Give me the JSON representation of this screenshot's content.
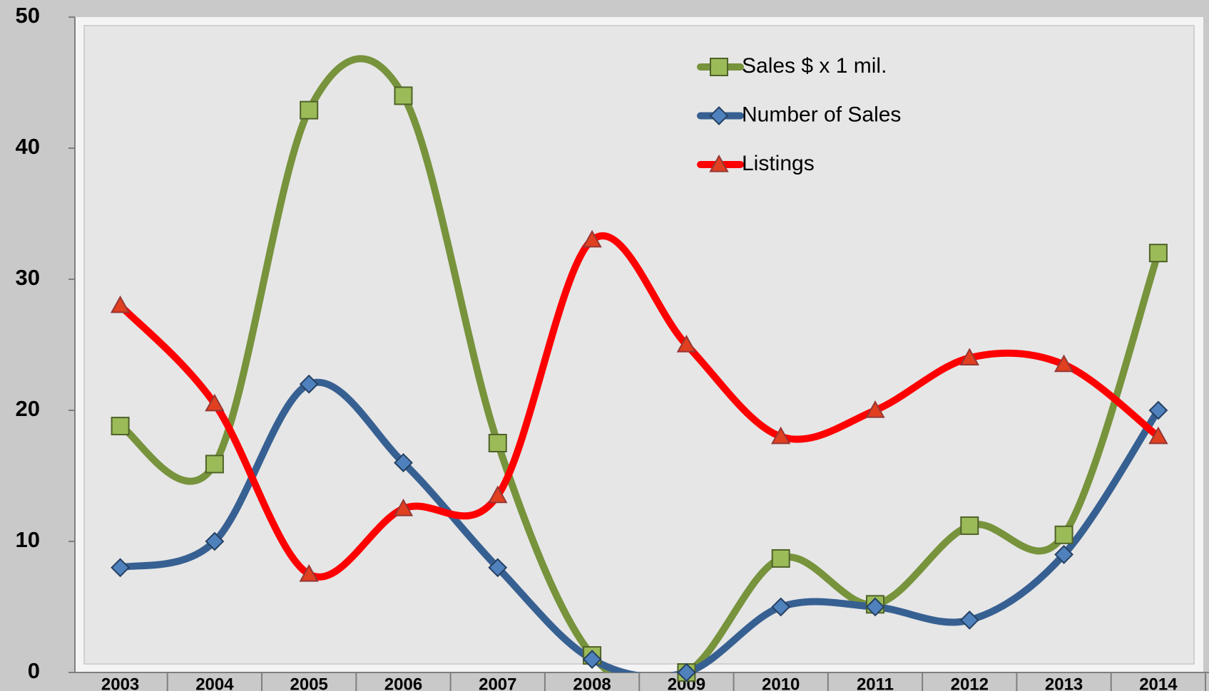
{
  "chart_data": {
    "type": "line",
    "categories": [
      "2003",
      "2004",
      "2005",
      "2006",
      "2007",
      "2008",
      "2009",
      "2010",
      "2011",
      "2012",
      "2013",
      "2014"
    ],
    "series": [
      {
        "name": "Sales $ x 1 mil.",
        "color": "#77933c",
        "marker": "square",
        "values": [
          18.8,
          15.9,
          42.9,
          44,
          17.5,
          1.3,
          0,
          8.7,
          5.2,
          11.2,
          10.5,
          32
        ]
      },
      {
        "name": "Number of Sales",
        "color": "#376092",
        "marker": "diamond",
        "values": [
          8,
          10,
          22,
          16,
          8,
          1,
          0,
          5,
          5,
          4,
          9,
          20
        ]
      },
      {
        "name": "Listings",
        "color": "#ff0000",
        "marker": "triangle",
        "values": [
          28,
          20.5,
          7.5,
          12.5,
          13.5,
          33,
          25,
          18,
          20,
          24,
          23.5,
          18
        ]
      }
    ],
    "ylim": [
      0,
      50
    ],
    "yticks": [
      0,
      10,
      20,
      30,
      40,
      50
    ],
    "smooth": true,
    "legend": "top-right"
  }
}
